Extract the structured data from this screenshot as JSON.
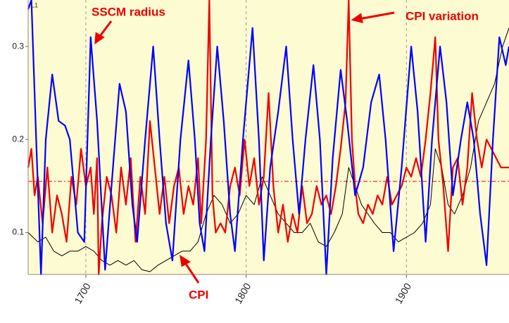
{
  "chart_data": {
    "type": "line",
    "corner_label": "L1",
    "annotations": [
      "SSCM radius",
      "CPI variation",
      "CPI"
    ],
    "xlim": [
      1664,
      1964
    ],
    "ylim": [
      0.055,
      0.35
    ],
    "xticks": [
      1700,
      1800,
      1900
    ],
    "yticks": [
      0.1,
      0.2,
      0.3
    ],
    "grid": true,
    "reference_line": {
      "value": 0.155,
      "color": "#ff0000"
    },
    "series": [
      {
        "color": "#0000ff",
        "x": [
          1664,
          1666,
          1669,
          1672,
          1675,
          1679,
          1683,
          1687,
          1690,
          1695,
          1699,
          1703,
          1707,
          1712,
          1716,
          1721,
          1725,
          1729,
          1732,
          1737,
          1742,
          1746,
          1750,
          1754,
          1759,
          1764,
          1768,
          1771,
          1774,
          1778,
          1782,
          1786,
          1790,
          1793,
          1798,
          1804,
          1808,
          1811,
          1815,
          1820,
          1825,
          1829,
          1833,
          1837,
          1842,
          1846,
          1850,
          1854,
          1859,
          1863,
          1868,
          1873,
          1878,
          1883,
          1887,
          1892,
          1897,
          1903,
          1907,
          1912,
          1916,
          1921,
          1925,
          1929,
          1934,
          1938,
          1942,
          1946,
          1950,
          1954,
          1958,
          1962,
          1964
        ],
        "values": [
          0.34,
          0.35,
          0.2,
          0.055,
          0.2,
          0.27,
          0.22,
          0.215,
          0.2,
          0.1,
          0.09,
          0.31,
          0.22,
          0.06,
          0.15,
          0.26,
          0.23,
          0.13,
          0.09,
          0.2,
          0.3,
          0.2,
          0.11,
          0.07,
          0.2,
          0.285,
          0.2,
          0.11,
          0.08,
          0.2,
          0.3,
          0.22,
          0.12,
          0.08,
          0.2,
          0.32,
          0.2,
          0.07,
          0.17,
          0.23,
          0.3,
          0.2,
          0.12,
          0.2,
          0.28,
          0.2,
          0.055,
          0.18,
          0.275,
          0.22,
          0.14,
          0.17,
          0.24,
          0.27,
          0.2,
          0.08,
          0.17,
          0.3,
          0.23,
          0.09,
          0.2,
          0.3,
          0.24,
          0.14,
          0.2,
          0.24,
          0.2,
          0.12,
          0.065,
          0.2,
          0.31,
          0.28,
          0.3
        ]
      },
      {
        "color": "#ee0000",
        "x": [
          1664,
          1666,
          1668,
          1670,
          1673,
          1676,
          1679,
          1682,
          1685,
          1688,
          1691,
          1694,
          1697,
          1700,
          1703,
          1705,
          1707,
          1708,
          1710,
          1713,
          1716,
          1719,
          1722,
          1725,
          1728,
          1731,
          1734,
          1737,
          1740,
          1743,
          1746,
          1749,
          1752,
          1755,
          1758,
          1761,
          1764,
          1767,
          1770,
          1772,
          1775,
          1777,
          1779,
          1781,
          1784,
          1787,
          1790,
          1793,
          1796,
          1799,
          1802,
          1805,
          1808,
          1811,
          1814,
          1817,
          1820,
          1823,
          1826,
          1829,
          1832,
          1835,
          1838,
          1841,
          1844,
          1847,
          1850,
          1853,
          1856,
          1859,
          1862,
          1864,
          1866,
          1868,
          1870,
          1873,
          1876,
          1879,
          1882,
          1885,
          1888,
          1891,
          1894,
          1897,
          1900,
          1903,
          1906,
          1909,
          1912,
          1915,
          1918,
          1920,
          1923,
          1926,
          1929,
          1932,
          1935,
          1938,
          1941,
          1944,
          1947,
          1950,
          1953,
          1956,
          1959,
          1964
        ],
        "values": [
          0.17,
          0.19,
          0.14,
          0.16,
          0.11,
          0.17,
          0.1,
          0.14,
          0.12,
          0.09,
          0.16,
          0.13,
          0.19,
          0.15,
          0.17,
          0.12,
          0.18,
          0.055,
          0.11,
          0.16,
          0.14,
          0.1,
          0.17,
          0.13,
          0.18,
          0.09,
          0.16,
          0.12,
          0.22,
          0.17,
          0.12,
          0.16,
          0.11,
          0.15,
          0.17,
          0.12,
          0.15,
          0.13,
          0.18,
          0.11,
          0.2,
          0.35,
          0.14,
          0.1,
          0.11,
          0.1,
          0.15,
          0.17,
          0.14,
          0.2,
          0.15,
          0.18,
          0.13,
          0.16,
          0.25,
          0.15,
          0.1,
          0.13,
          0.09,
          0.12,
          0.1,
          0.15,
          0.11,
          0.12,
          0.15,
          0.13,
          0.14,
          0.12,
          0.15,
          0.19,
          0.24,
          0.35,
          0.2,
          0.15,
          0.12,
          0.11,
          0.13,
          0.12,
          0.14,
          0.13,
          0.16,
          0.13,
          0.14,
          0.15,
          0.17,
          0.16,
          0.18,
          0.16,
          0.2,
          0.25,
          0.31,
          0.2,
          0.15,
          0.08,
          0.17,
          0.18,
          0.13,
          0.17,
          0.25,
          0.2,
          0.17,
          0.2,
          0.19,
          0.18,
          0.17,
          0.17
        ]
      },
      {
        "color": "#000000",
        "x": [
          1664,
          1670,
          1675,
          1680,
          1685,
          1690,
          1695,
          1700,
          1705,
          1710,
          1715,
          1720,
          1725,
          1730,
          1735,
          1740,
          1745,
          1750,
          1755,
          1760,
          1765,
          1770,
          1775,
          1780,
          1785,
          1790,
          1795,
          1800,
          1805,
          1810,
          1815,
          1820,
          1825,
          1830,
          1835,
          1840,
          1845,
          1850,
          1855,
          1860,
          1864,
          1868,
          1872,
          1876,
          1880,
          1885,
          1890,
          1895,
          1900,
          1905,
          1910,
          1915,
          1918,
          1922,
          1926,
          1930,
          1935,
          1940,
          1945,
          1950,
          1955,
          1960,
          1964
        ],
        "values": [
          0.1,
          0.09,
          0.095,
          0.08,
          0.075,
          0.08,
          0.08,
          0.085,
          0.08,
          0.07,
          0.065,
          0.07,
          0.065,
          0.07,
          0.06,
          0.058,
          0.065,
          0.07,
          0.075,
          0.08,
          0.08,
          0.09,
          0.12,
          0.14,
          0.13,
          0.11,
          0.12,
          0.14,
          0.13,
          0.16,
          0.14,
          0.12,
          0.11,
          0.1,
          0.1,
          0.11,
          0.09,
          0.085,
          0.1,
          0.12,
          0.17,
          0.15,
          0.13,
          0.12,
          0.11,
          0.1,
          0.1,
          0.09,
          0.095,
          0.1,
          0.11,
          0.13,
          0.19,
          0.17,
          0.13,
          0.12,
          0.14,
          0.17,
          0.22,
          0.24,
          0.26,
          0.3,
          0.32
        ]
      }
    ]
  }
}
